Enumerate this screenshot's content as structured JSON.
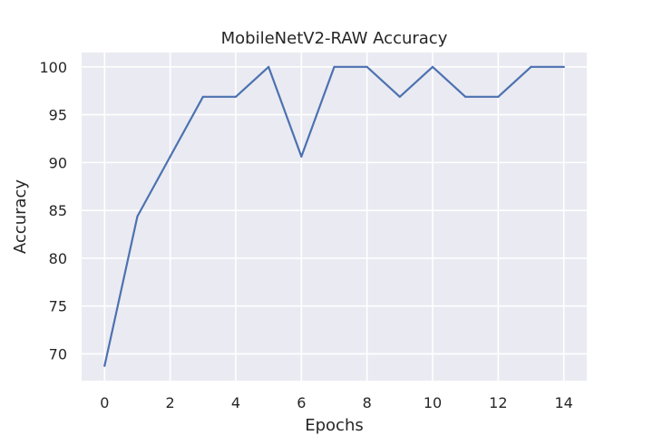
{
  "chart_data": {
    "type": "line",
    "title": "MobileNetV2-RAW Accuracy",
    "xlabel": "Epochs",
    "ylabel": "Accuracy",
    "x": [
      0,
      1,
      2,
      3,
      4,
      5,
      6,
      7,
      8,
      9,
      10,
      11,
      12,
      13,
      14
    ],
    "series": [
      {
        "values": [
          68.75,
          84.375,
          90.625,
          96.875,
          96.875,
          100,
          90.625,
          100,
          100,
          96.875,
          100,
          96.875,
          96.875,
          100,
          100
        ],
        "color": "#4c72b0"
      }
    ],
    "xlim": [
      -0.7,
      14.7
    ],
    "ylim": [
      67.2,
      101.5
    ],
    "xticks": [
      0,
      2,
      4,
      6,
      8,
      10,
      12,
      14
    ],
    "yticks": [
      70,
      75,
      80,
      85,
      90,
      95,
      100
    ],
    "grid": true,
    "background": "#eaeaf2"
  }
}
